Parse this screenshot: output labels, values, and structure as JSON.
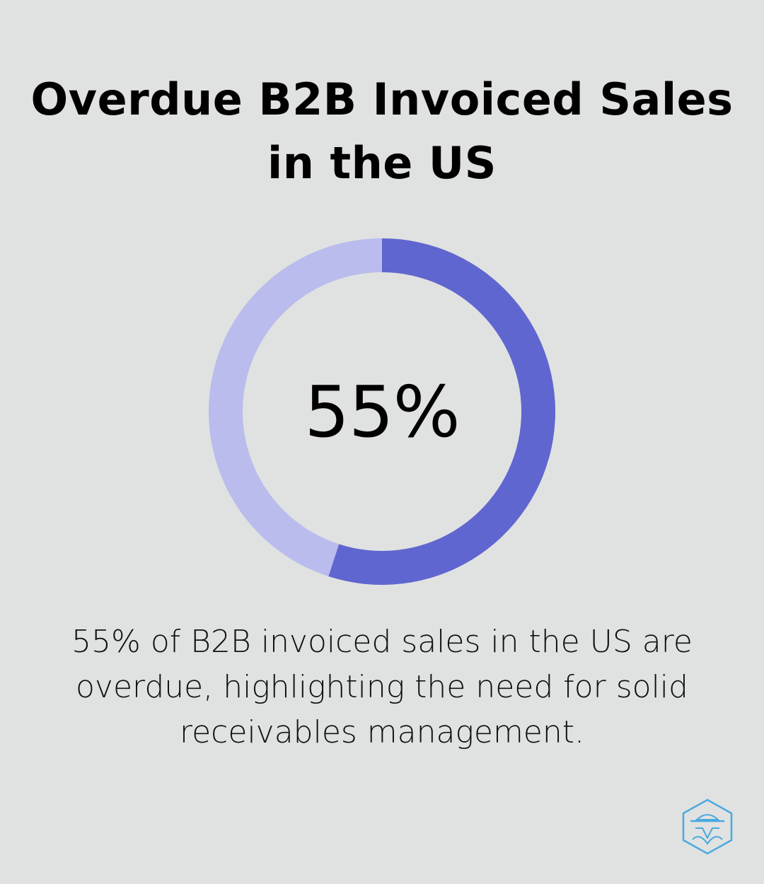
{
  "title_line1": "Overdue B2B Invoiced Sales",
  "title_line2": "in the US",
  "caption_line1": "55% of B2B invoiced sales in the US are",
  "caption_line2": "overdue, highlighting the need for solid",
  "caption_line3": "receivables management.",
  "logo_icon": "hexagon-spy-hat-logo-icon",
  "colors": {
    "background": "#e0e2e1",
    "accent": "#6066cf",
    "track": "#b9bcec",
    "logo": "#4aa9e0"
  },
  "chart_data": {
    "type": "pie",
    "variant": "donut",
    "center_label": "55%",
    "slices": [
      {
        "value": 55,
        "color": "#6066cf"
      },
      {
        "value": 45,
        "color": "#b9bcec"
      }
    ],
    "start_angle_deg": 0,
    "direction": "clockwise"
  }
}
